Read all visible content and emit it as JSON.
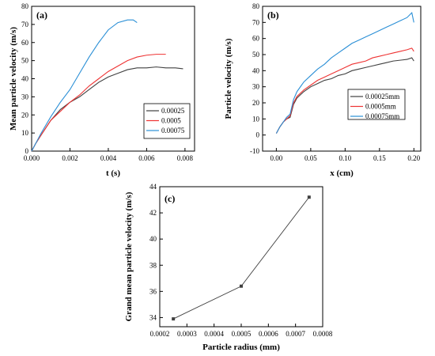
{
  "chart_data": [
    {
      "id": "a",
      "type": "line",
      "panel_label": "(a)",
      "xlabel": "t (s)",
      "ylabel": "Mean particle velocity (m/s)",
      "xlim": [
        0,
        0.0085
      ],
      "ylim": [
        0,
        80
      ],
      "xticks": [
        0.0,
        0.002,
        0.004,
        0.006,
        0.008
      ],
      "xtick_labels": [
        "0.000",
        "0.002",
        "0.004",
        "0.006",
        "0.008"
      ],
      "yticks": [
        0,
        10,
        20,
        30,
        40,
        50,
        60,
        70,
        80
      ],
      "legend_position": "bottom-right",
      "series": [
        {
          "name": "0.00025",
          "color": "#404040",
          "x": [
            0,
            0.0002,
            0.0005,
            0.001,
            0.0015,
            0.002,
            0.0025,
            0.003,
            0.0035,
            0.004,
            0.0045,
            0.005,
            0.0055,
            0.006,
            0.0065,
            0.007,
            0.0075,
            0.0079
          ],
          "y": [
            0,
            4,
            9,
            17,
            23,
            27,
            30,
            34,
            38,
            41,
            43,
            45,
            46,
            46,
            46.5,
            46,
            46,
            45.5
          ]
        },
        {
          "name": "0.0005",
          "color": "#ee3333",
          "x": [
            0,
            0.0002,
            0.0005,
            0.001,
            0.0015,
            0.002,
            0.0025,
            0.003,
            0.0035,
            0.004,
            0.0045,
            0.005,
            0.0055,
            0.006,
            0.0065,
            0.007
          ],
          "y": [
            0,
            4,
            9,
            17,
            22,
            27,
            31,
            36,
            40,
            44,
            47,
            50,
            52,
            53,
            53.5,
            53.5
          ]
        },
        {
          "name": "0.00075",
          "color": "#2a8fd6",
          "x": [
            0,
            0.0002,
            0.0005,
            0.001,
            0.0015,
            0.002,
            0.0025,
            0.003,
            0.0035,
            0.004,
            0.0045,
            0.005,
            0.0053,
            0.0055
          ],
          "y": [
            0,
            4,
            10,
            19,
            27,
            34,
            43,
            52,
            60,
            67,
            71,
            72.5,
            72.5,
            71
          ]
        }
      ]
    },
    {
      "id": "b",
      "type": "line",
      "panel_label": "(b)",
      "xlabel": "x (cm)",
      "ylabel": "Particle velocity (m/s)",
      "xlim": [
        -0.02,
        0.21
      ],
      "ylim": [
        -10,
        80
      ],
      "xticks": [
        0.0,
        0.05,
        0.1,
        0.15,
        0.2
      ],
      "xtick_labels": [
        "0.00",
        "0.05",
        "0.10",
        "0.15",
        "0.20"
      ],
      "yticks": [
        -10,
        0,
        10,
        20,
        30,
        40,
        50,
        60,
        70,
        80
      ],
      "legend_position": "bottom-right",
      "series": [
        {
          "name": "0.00025mm",
          "color": "#404040",
          "x": [
            0,
            0.005,
            0.01,
            0.015,
            0.02,
            0.025,
            0.03,
            0.04,
            0.05,
            0.06,
            0.07,
            0.08,
            0.09,
            0.1,
            0.11,
            0.12,
            0.13,
            0.14,
            0.15,
            0.16,
            0.17,
            0.18,
            0.19,
            0.197,
            0.2
          ],
          "y": [
            1,
            5,
            8,
            10,
            11,
            19,
            23,
            27,
            30,
            32,
            34,
            35,
            37,
            38,
            40,
            41,
            42,
            43,
            44,
            45,
            46,
            46.5,
            47,
            48,
            46
          ]
        },
        {
          "name": "0.0005mm",
          "color": "#ee3333",
          "x": [
            0,
            0.005,
            0.01,
            0.015,
            0.02,
            0.025,
            0.03,
            0.04,
            0.05,
            0.06,
            0.07,
            0.08,
            0.09,
            0.1,
            0.11,
            0.12,
            0.13,
            0.14,
            0.15,
            0.16,
            0.17,
            0.18,
            0.19,
            0.197,
            0.2
          ],
          "y": [
            1,
            5,
            8,
            10,
            12,
            20,
            24,
            28,
            31,
            34,
            36,
            38,
            40,
            42,
            44,
            45,
            46,
            48,
            49,
            50,
            51,
            52,
            53,
            54,
            52
          ]
        },
        {
          "name": "0.00075mm",
          "color": "#2a8fd6",
          "x": [
            0,
            0.005,
            0.01,
            0.015,
            0.02,
            0.025,
            0.03,
            0.04,
            0.05,
            0.06,
            0.07,
            0.08,
            0.09,
            0.1,
            0.11,
            0.12,
            0.13,
            0.14,
            0.15,
            0.16,
            0.17,
            0.18,
            0.19,
            0.197,
            0.2
          ],
          "y": [
            1,
            5,
            8,
            11,
            13,
            22,
            27,
            33,
            37,
            41,
            44,
            48,
            51,
            54,
            57,
            59,
            61,
            63,
            65,
            67,
            69,
            71,
            73,
            76,
            70
          ]
        }
      ]
    },
    {
      "id": "c",
      "type": "line",
      "panel_label": "(c)",
      "xlabel": "Particle radius (mm)",
      "ylabel": "Grand mean particle velocity (m/s)",
      "xlim": [
        0.0002,
        0.0008
      ],
      "ylim": [
        33.3,
        44
      ],
      "xticks": [
        0.0002,
        0.0003,
        0.0004,
        0.0005,
        0.0006,
        0.0007,
        0.0008
      ],
      "xtick_labels": [
        "0.0002",
        "0.0003",
        "0.0004",
        "0.0005",
        "0.0006",
        "0.0007",
        "0.0008"
      ],
      "yticks": [
        34,
        36,
        38,
        40,
        42,
        44
      ],
      "series": [
        {
          "color": "#404040",
          "marker": "square",
          "x": [
            0.00025,
            0.0005,
            0.00075
          ],
          "y": [
            33.9,
            36.4,
            43.2
          ]
        }
      ]
    }
  ]
}
